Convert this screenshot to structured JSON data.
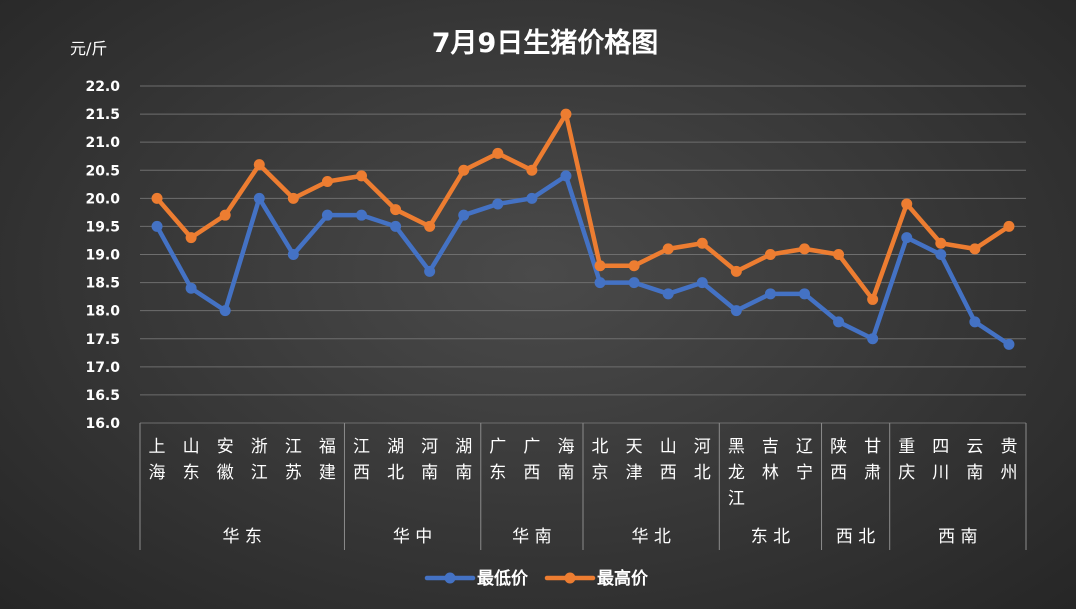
{
  "chart_data": {
    "type": "line",
    "title": "7月9日生猪价格图",
    "ylabel": "元/斤",
    "xlabel": "",
    "ylim": [
      16.0,
      22.0
    ],
    "yticks": [
      "16.0",
      "16.5",
      "17.0",
      "17.5",
      "18.0",
      "18.5",
      "19.0",
      "19.5",
      "20.0",
      "20.5",
      "21.0",
      "21.5",
      "22.0"
    ],
    "grid": true,
    "legend_position": "bottom",
    "categories": [
      [
        "上",
        "海"
      ],
      [
        "山",
        "东"
      ],
      [
        "安",
        "徽"
      ],
      [
        "浙",
        "江"
      ],
      [
        "江",
        "苏"
      ],
      [
        "福",
        "建"
      ],
      [
        "江",
        "西"
      ],
      [
        "湖",
        "北"
      ],
      [
        "河",
        "南"
      ],
      [
        "湖",
        "南"
      ],
      [
        "广",
        "东"
      ],
      [
        "广",
        "西"
      ],
      [
        "海",
        "南"
      ],
      [
        "北",
        "京"
      ],
      [
        "天",
        "津"
      ],
      [
        "山",
        "西"
      ],
      [
        "河",
        "北"
      ],
      [
        "黑",
        "龙",
        "江"
      ],
      [
        "吉",
        "林"
      ],
      [
        "辽",
        "宁"
      ],
      [
        "陕",
        "西"
      ],
      [
        "甘",
        "肃"
      ],
      [
        "重",
        "庆"
      ],
      [
        "四",
        "川"
      ],
      [
        "云",
        "南"
      ],
      [
        "贵",
        "州"
      ]
    ],
    "groups": [
      {
        "name": "华 东",
        "count": 6
      },
      {
        "name": "华 中",
        "count": 4
      },
      {
        "name": "华 南",
        "count": 3
      },
      {
        "name": "华 北",
        "count": 4
      },
      {
        "name": "东 北",
        "count": 3
      },
      {
        "name": "西 北",
        "count": 2
      },
      {
        "name": "西 南",
        "count": 4
      }
    ],
    "series": [
      {
        "name": "最低价",
        "color": "#4472c4",
        "values": [
          19.5,
          18.4,
          18.0,
          20.0,
          19.0,
          19.7,
          19.7,
          19.5,
          18.7,
          19.7,
          19.9,
          20.0,
          20.4,
          18.5,
          18.5,
          18.3,
          18.5,
          18.0,
          18.3,
          18.3,
          17.8,
          17.5,
          19.3,
          19.0,
          17.8,
          17.4
        ]
      },
      {
        "name": "最高价",
        "color": "#ed7d31",
        "values": [
          20.0,
          19.3,
          19.7,
          20.6,
          20.0,
          20.3,
          20.4,
          19.8,
          19.5,
          20.5,
          20.8,
          20.5,
          21.5,
          18.8,
          18.8,
          19.1,
          19.2,
          18.7,
          19.0,
          19.1,
          19.0,
          18.2,
          19.9,
          19.2,
          19.1,
          19.5
        ]
      }
    ]
  }
}
